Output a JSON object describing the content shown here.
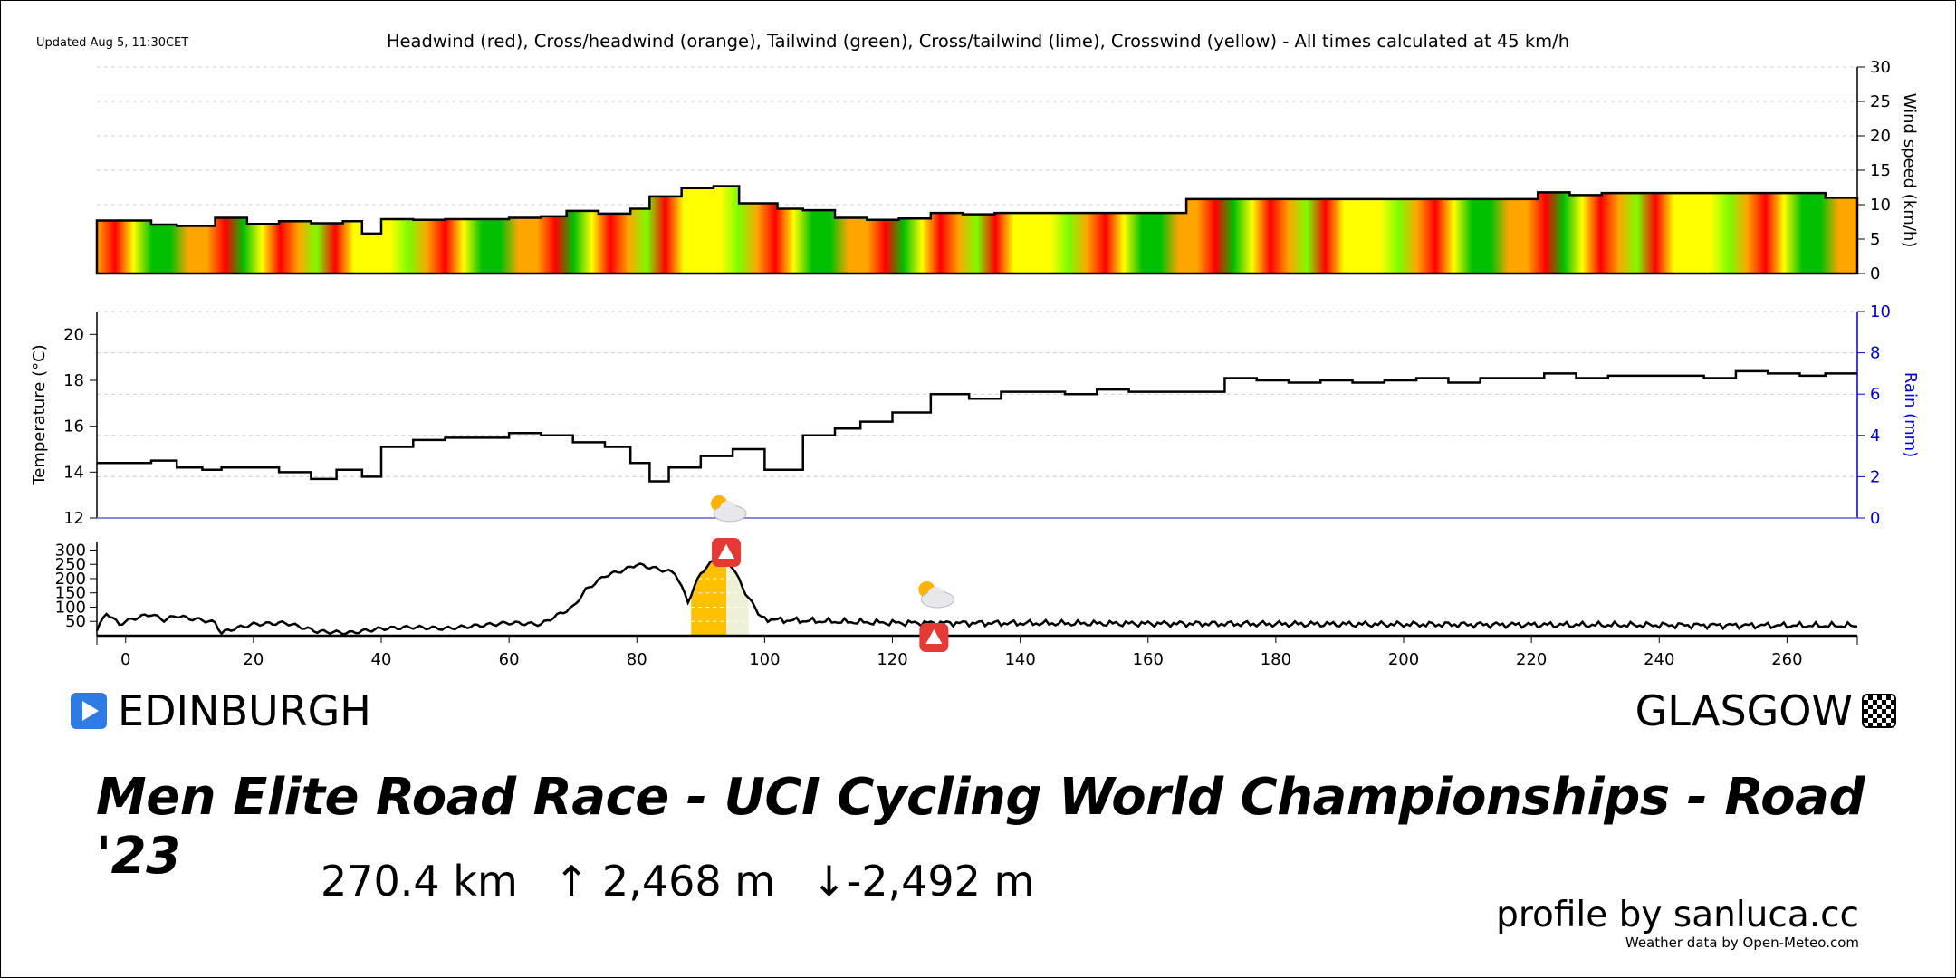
{
  "updated": "Updated Aug 5, 11:30CET",
  "legend": "Headwind (red), Cross/headwind (orange), Tailwind (green), Cross/tailwind (lime), Crosswind (yellow) - All times calculated at 45 km/h",
  "start_city": "EDINBURGH",
  "finish_city": "GLASGOW",
  "race_title": "Men Elite Road Race - UCI Cycling World Championships - Road '23",
  "stats": {
    "distance": "270.4 km",
    "ascent": "↑ 2,468 m",
    "descent": "↓-2,492 m"
  },
  "credit": "profile by sanluca.cc",
  "weather_credit": "Weather data by Open-Meteo.com",
  "colors": {
    "headwind": "#ff0000",
    "crossheadwind": "#ffa500",
    "tailwind": "#00c000",
    "crosstailwind": "#7cfc00",
    "crosswind": "#ffff00",
    "rain_axis": "#0000cc",
    "climb": "#ffc000"
  },
  "chart_data": [
    {
      "type": "area",
      "ylabel": "Wind speed (km/h)",
      "ylim": [
        0,
        30
      ],
      "yticks": [
        0,
        5,
        10,
        15,
        20,
        25,
        30
      ],
      "x": [
        0,
        4,
        8,
        14,
        19,
        24,
        29,
        34,
        37,
        40,
        45,
        50,
        55,
        60,
        65,
        69,
        74,
        79,
        82,
        87,
        92,
        96,
        102,
        106,
        111,
        116,
        121,
        126,
        131,
        136,
        141,
        146,
        151,
        156,
        161,
        166,
        171,
        176,
        181,
        186,
        191,
        196,
        201,
        206,
        211,
        216,
        221,
        226,
        231,
        236,
        241,
        246,
        251,
        256,
        261,
        266,
        270
      ],
      "values": [
        7.7,
        7.1,
        6.9,
        8.1,
        7.2,
        7.6,
        7.3,
        7.6,
        5.8,
        7.9,
        7.8,
        7.9,
        7.9,
        8.1,
        8.3,
        9.1,
        8.7,
        9.4,
        11.2,
        12.4,
        12.7,
        10.2,
        9.4,
        9.2,
        8.1,
        7.8,
        8.0,
        8.8,
        8.6,
        8.8,
        8.8,
        8.8,
        8.8,
        8.8,
        8.8,
        10.8,
        10.8,
        10.8,
        10.8,
        10.8,
        10.8,
        10.8,
        10.8,
        10.8,
        10.8,
        10.8,
        11.8,
        11.4,
        11.7,
        11.7,
        11.7,
        11.7,
        11.7,
        11.7,
        11.7,
        11.0,
        11.0
      ]
    },
    {
      "type": "line",
      "ylabel": "Temperature (°C)",
      "ylim": [
        12,
        21
      ],
      "yticks": [
        12,
        14,
        16,
        18,
        20
      ],
      "y2label": "Rain (mm)",
      "y2lim": [
        0,
        10
      ],
      "y2ticks": [
        0,
        2,
        4,
        6,
        8,
        10
      ],
      "x": [
        0,
        4,
        8,
        12,
        15,
        19,
        24,
        29,
        33,
        37,
        40,
        45,
        50,
        55,
        60,
        65,
        70,
        75,
        79,
        82,
        85,
        90,
        95,
        100,
        106,
        111,
        115,
        120,
        126,
        132,
        137,
        142,
        147,
        152,
        157,
        162,
        167,
        172,
        177,
        182,
        187,
        192,
        197,
        202,
        207,
        212,
        217,
        222,
        227,
        232,
        237,
        242,
        247,
        252,
        257,
        262,
        266,
        270
      ],
      "values": [
        14.4,
        14.5,
        14.2,
        14.1,
        14.2,
        14.2,
        14.0,
        13.7,
        14.1,
        13.8,
        15.1,
        15.4,
        15.5,
        15.5,
        15.7,
        15.6,
        15.3,
        15.1,
        14.4,
        13.6,
        14.2,
        14.7,
        15.0,
        14.1,
        15.6,
        15.9,
        16.2,
        16.6,
        17.4,
        17.2,
        17.5,
        17.5,
        17.4,
        17.6,
        17.5,
        17.5,
        17.5,
        18.1,
        18.0,
        17.9,
        18.0,
        17.9,
        18.0,
        18.1,
        17.9,
        18.1,
        18.1,
        18.3,
        18.1,
        18.2,
        18.2,
        18.2,
        18.1,
        18.4,
        18.3,
        18.2,
        18.3,
        18.3
      ],
      "rain": 0
    },
    {
      "type": "line",
      "yticks": [
        50,
        100,
        150,
        200,
        250,
        300
      ],
      "ylim": [
        0,
        330
      ],
      "xticks": [
        0,
        20,
        40,
        60,
        80,
        100,
        120,
        140,
        160,
        180,
        200,
        220,
        240,
        260
      ],
      "xlim": [
        -4.5,
        271
      ],
      "elevation_x": [
        -4.5,
        -3,
        -1,
        0,
        2,
        4,
        6,
        8,
        10,
        12,
        14,
        15,
        17,
        20,
        25,
        30,
        35,
        40,
        45,
        50,
        55,
        60,
        65,
        67,
        70,
        72,
        75,
        78,
        80,
        83,
        86,
        88,
        90,
        93,
        95,
        97,
        99,
        100,
        102,
        110,
        120,
        270
      ],
      "elevation": [
        20,
        80,
        40,
        50,
        65,
        75,
        55,
        70,
        60,
        55,
        45,
        10,
        25,
        40,
        45,
        15,
        10,
        25,
        30,
        25,
        35,
        45,
        40,
        65,
        100,
        160,
        210,
        230,
        250,
        235,
        220,
        120,
        220,
        285,
        240,
        150,
        80,
        60,
        55,
        50,
        45,
        35
      ],
      "climbs": [
        {
          "start": 88.5,
          "summit": 94,
          "end": 97.5
        }
      ],
      "kom_markers": [
        94,
        126.5
      ],
      "weather_markers": [
        94,
        126.5
      ]
    }
  ]
}
